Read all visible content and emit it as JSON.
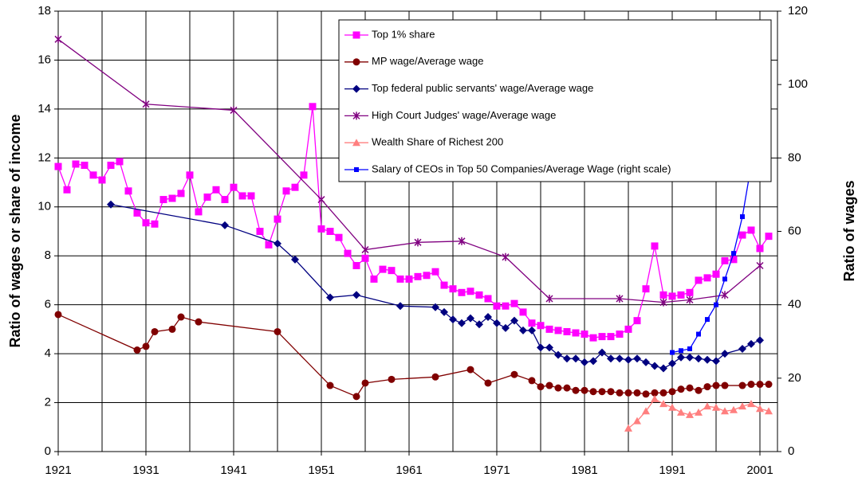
{
  "chart_data": {
    "type": "line",
    "y_axis_title": "Ratio of wages or share of income",
    "y2_axis_title": "Ratio of wages",
    "xlim": [
      1921,
      2003
    ],
    "xticks": [
      1921,
      1931,
      1941,
      1951,
      1961,
      1971,
      1981,
      1991,
      2001
    ],
    "ylim": [
      0,
      18
    ],
    "yticks": [
      0,
      2,
      4,
      6,
      8,
      10,
      12,
      14,
      16,
      18
    ],
    "y2lim": [
      0,
      120
    ],
    "y2ticks": [
      0,
      20,
      40,
      60,
      80,
      100,
      120
    ],
    "grid": true,
    "x_minor_grid": true,
    "legend": "upper right",
    "series": [
      {
        "name": "Top 1% share",
        "color": "#ff00ff",
        "marker": "square",
        "x": [
          1921,
          1922,
          1923,
          1924,
          1925,
          1926,
          1927,
          1928,
          1929,
          1930,
          1931,
          1932,
          1933,
          1934,
          1935,
          1936,
          1937,
          1938,
          1939,
          1940,
          1941,
          1942,
          1943,
          1944,
          1945,
          1946,
          1947,
          1948,
          1949,
          1950,
          1951,
          1952,
          1953,
          1954,
          1955,
          1956,
          1957,
          1958,
          1959,
          1960,
          1961,
          1962,
          1963,
          1964,
          1965,
          1966,
          1967,
          1968,
          1969,
          1970,
          1971,
          1972,
          1973,
          1974,
          1975,
          1976,
          1977,
          1978,
          1979,
          1980,
          1981,
          1982,
          1983,
          1984,
          1985,
          1986,
          1987,
          1988,
          1989,
          1990,
          1991,
          1992,
          1993,
          1994,
          1995,
          1996,
          1997,
          1998,
          1999,
          2000,
          2001,
          2002
        ],
        "values": [
          11.65,
          10.7,
          11.75,
          11.7,
          11.3,
          11.1,
          11.7,
          11.85,
          10.65,
          9.75,
          9.35,
          9.3,
          10.3,
          10.35,
          10.55,
          11.3,
          9.8,
          10.4,
          10.7,
          10.3,
          10.8,
          10.45,
          10.45,
          9.0,
          8.45,
          9.5,
          10.65,
          10.8,
          11.3,
          14.1,
          9.1,
          9.0,
          8.75,
          8.1,
          7.6,
          7.9,
          7.05,
          7.45,
          7.4,
          7.05,
          7.05,
          7.15,
          7.2,
          7.35,
          6.8,
          6.65,
          6.5,
          6.55,
          6.4,
          6.25,
          5.95,
          5.95,
          6.05,
          5.7,
          5.25,
          5.15,
          5.0,
          4.95,
          4.9,
          4.85,
          4.8,
          4.65,
          4.7,
          4.7,
          4.8,
          5.0,
          5.35,
          6.65,
          8.4,
          6.4,
          6.35,
          6.4,
          6.5,
          7.0,
          7.1,
          7.25,
          7.8,
          7.85,
          8.85,
          9.05,
          8.3,
          8.8
        ]
      },
      {
        "name": "MP wage/Average wage",
        "color": "#800000",
        "marker": "circle",
        "x": [
          1921,
          1930,
          1931,
          1932,
          1934,
          1935,
          1937,
          1946,
          1952,
          1955,
          1956,
          1959,
          1964,
          1968,
          1970,
          1973,
          1975,
          1976,
          1977,
          1978,
          1979,
          1980,
          1981,
          1982,
          1983,
          1984,
          1985,
          1986,
          1987,
          1988,
          1989,
          1990,
          1991,
          1992,
          1993,
          1994,
          1995,
          1996,
          1997,
          1999,
          2000,
          2001,
          2002
        ],
        "values": [
          5.6,
          4.15,
          4.3,
          4.9,
          5.0,
          5.5,
          5.3,
          4.9,
          2.7,
          2.25,
          2.8,
          2.95,
          3.05,
          3.35,
          2.8,
          3.15,
          2.9,
          2.65,
          2.7,
          2.6,
          2.6,
          2.5,
          2.5,
          2.45,
          2.45,
          2.45,
          2.4,
          2.4,
          2.4,
          2.35,
          2.4,
          2.4,
          2.45,
          2.55,
          2.6,
          2.5,
          2.65,
          2.7,
          2.7,
          2.7,
          2.75,
          2.75,
          2.75
        ]
      },
      {
        "name": "Top federal public servants' wage/Average wage",
        "color": "#000080",
        "marker": "diamond",
        "x": [
          1927,
          1940,
          1946,
          1948,
          1952,
          1955,
          1960,
          1964,
          1965,
          1966,
          1967,
          1968,
          1969,
          1970,
          1971,
          1972,
          1973,
          1974,
          1975,
          1976,
          1977,
          1978,
          1979,
          1980,
          1981,
          1982,
          1983,
          1984,
          1985,
          1986,
          1987,
          1988,
          1989,
          1990,
          1991,
          1992,
          1993,
          1994,
          1995,
          1996,
          1997,
          1999,
          2000,
          2001
        ],
        "values": [
          10.1,
          9.25,
          8.5,
          7.85,
          6.3,
          6.4,
          5.95,
          5.9,
          5.7,
          5.4,
          5.25,
          5.45,
          5.2,
          5.5,
          5.25,
          5.05,
          5.35,
          4.95,
          4.95,
          4.25,
          4.25,
          3.95,
          3.8,
          3.8,
          3.65,
          3.7,
          4.05,
          3.8,
          3.8,
          3.75,
          3.8,
          3.65,
          3.5,
          3.4,
          3.6,
          3.85,
          3.85,
          3.8,
          3.75,
          3.7,
          4.0,
          4.2,
          4.4,
          4.55
        ]
      },
      {
        "name": "High Court Judges' wage/Average wage",
        "color": "#800080",
        "marker": "star",
        "x": [
          1921,
          1931,
          1941,
          1951,
          1956,
          1962,
          1967,
          1972,
          1977,
          1985,
          1990,
          1993,
          1997,
          2001
        ],
        "values": [
          16.85,
          14.2,
          13.95,
          10.3,
          8.25,
          8.55,
          8.6,
          7.95,
          6.25,
          6.25,
          6.1,
          6.2,
          6.4,
          7.6
        ]
      },
      {
        "name": "Wealth Share of Richest 200",
        "color": "#ff7f7f",
        "marker": "triangle",
        "x": [
          1986,
          1987,
          1988,
          1989,
          1990,
          1991,
          1992,
          1993,
          1994,
          1995,
          1996,
          1997,
          1998,
          1999,
          2000,
          2001,
          2002
        ],
        "values": [
          0.95,
          1.25,
          1.65,
          2.15,
          1.95,
          1.8,
          1.6,
          1.5,
          1.6,
          1.85,
          1.8,
          1.65,
          1.7,
          1.85,
          1.95,
          1.75,
          1.65
        ]
      },
      {
        "name": "Salary of CEOs in Top 50 Companies/Average Wage (right scale)",
        "color": "#0000ff",
        "marker": "small-square",
        "axis": "y2",
        "x": [
          1991,
          1992,
          1993,
          1994,
          1995,
          1996,
          1997,
          1998,
          1999,
          2000,
          2001,
          2002
        ],
        "values": [
          27,
          27.5,
          28,
          32,
          36,
          40,
          47,
          54,
          64,
          78,
          89,
          98.5
        ]
      }
    ]
  }
}
